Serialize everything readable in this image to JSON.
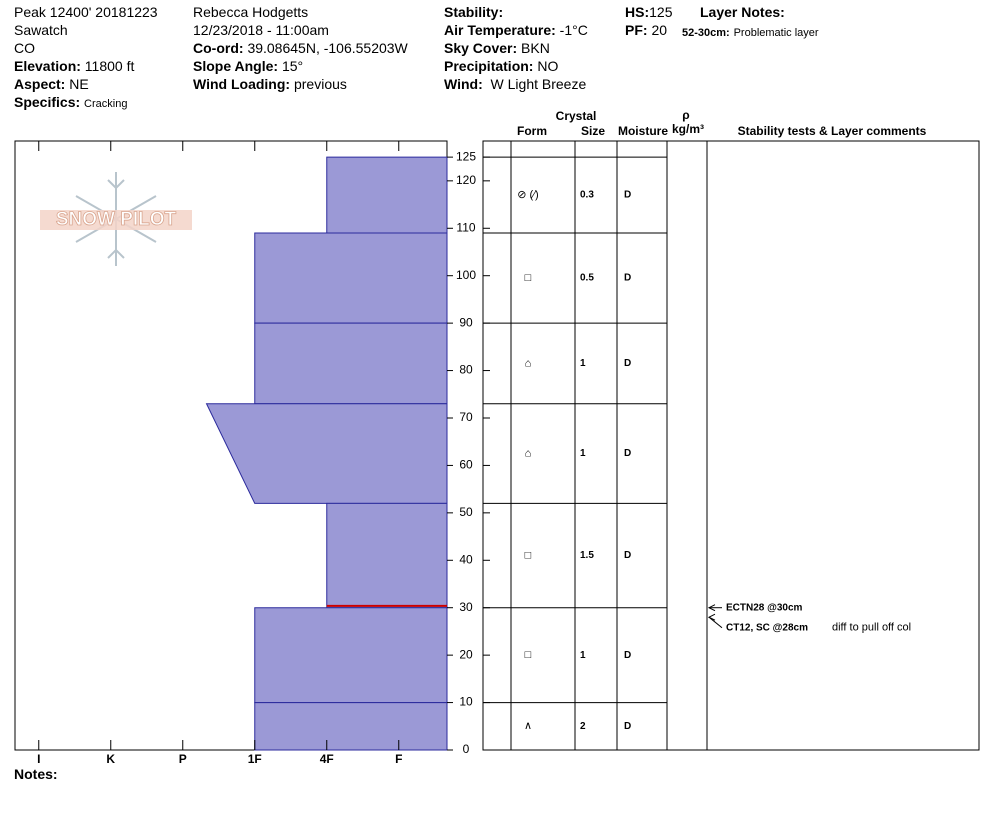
{
  "header": {
    "title": "Peak 12400' 20181223",
    "range": "Sawatch",
    "state": "CO",
    "elevation": {
      "label": "Elevation:",
      "value": "11800 ft"
    },
    "aspect": {
      "label": "Aspect:",
      "value": "NE"
    },
    "specifics": {
      "label": "Specifics:",
      "value": "Cracking"
    },
    "observer": "Rebecca Hodgetts",
    "datetime": "12/23/2018 - 11:00am",
    "coord": {
      "label": "Co-ord:",
      "value": "39.08645N, -106.55203W"
    },
    "slope": {
      "label": "Slope Angle:",
      "value": "15°"
    },
    "wind_loading": {
      "label": "Wind Loading:",
      "value": "previous"
    },
    "stability": {
      "label": "Stability:"
    },
    "air_temp": {
      "label": "Air Temperature:",
      "value": "-1°C"
    },
    "sky": {
      "label": "Sky Cover:",
      "value": "BKN"
    },
    "precip": {
      "label": "Precipitation:",
      "value": "NO"
    },
    "wind": {
      "label": "Wind:",
      "value": "W Light Breeze"
    },
    "hs": {
      "label": "HS:",
      "value": 125
    },
    "pf": {
      "label": "PF:",
      "value": 20
    },
    "layer_notes": {
      "label": "Layer Notes:",
      "range": "52-30cm:",
      "text": "Problematic layer"
    }
  },
  "logo": "SNOW PILOT",
  "columns": {
    "crystal": "Crystal",
    "form": "Form",
    "size": "Size",
    "moisture": "Moisture",
    "rho": "ρ",
    "density_unit": "kg/m³",
    "comments": "Stability tests & Layer comments"
  },
  "profile": {
    "ylim": [
      0,
      128.4
    ],
    "yticks": [
      0,
      10,
      20,
      30,
      40,
      50,
      60,
      70,
      80,
      90,
      100,
      110,
      120,
      125
    ],
    "xlim": [
      6.33,
      0.33
    ],
    "xticks": [
      {
        "value": 6,
        "label": "I"
      },
      {
        "value": 5,
        "label": "K"
      },
      {
        "value": 4,
        "label": "P"
      },
      {
        "value": 3,
        "label": "1F"
      },
      {
        "value": 2,
        "label": "4F"
      },
      {
        "value": 1,
        "label": "F"
      }
    ],
    "color": "#9b99d6",
    "critical_depth": 30.4,
    "critical_color": "#cc0000",
    "layers": [
      {
        "top": 125,
        "bottom": 109,
        "hardness_top": 2,
        "hardness_bottom": 2,
        "form": "⊘ (⁄)",
        "size": 0.3,
        "moisture": "D"
      },
      {
        "top": 109,
        "bottom": 90,
        "hardness_top": 3,
        "hardness_bottom": 3,
        "form": "□",
        "size": 0.5,
        "moisture": "D"
      },
      {
        "top": 90,
        "bottom": 73,
        "hardness_top": 3,
        "hardness_bottom": 3,
        "form": "⌂",
        "size": 1,
        "moisture": "D"
      },
      {
        "top": 73,
        "bottom": 52,
        "hardness_top": 3.67,
        "hardness_bottom": 3,
        "form": "⌂",
        "size": 1,
        "moisture": "D"
      },
      {
        "top": 52,
        "bottom": 30,
        "hardness_top": 2,
        "hardness_bottom": 2,
        "form": "□",
        "size": 1.5,
        "moisture": "D"
      },
      {
        "top": 30,
        "bottom": 10,
        "hardness_top": 3,
        "hardness_bottom": 3,
        "form": "□",
        "size": 1,
        "moisture": "D"
      },
      {
        "top": 10,
        "bottom": 0,
        "hardness_top": 3,
        "hardness_bottom": 3,
        "form": "∧",
        "size": 2,
        "moisture": "D"
      }
    ],
    "tests": [
      {
        "depth": 30,
        "label": "ECTN28 @30cm"
      },
      {
        "depth": 28,
        "label": "CT12, SC @28cm",
        "comment": "diff to pull off col"
      }
    ]
  },
  "notes": "Notes:"
}
